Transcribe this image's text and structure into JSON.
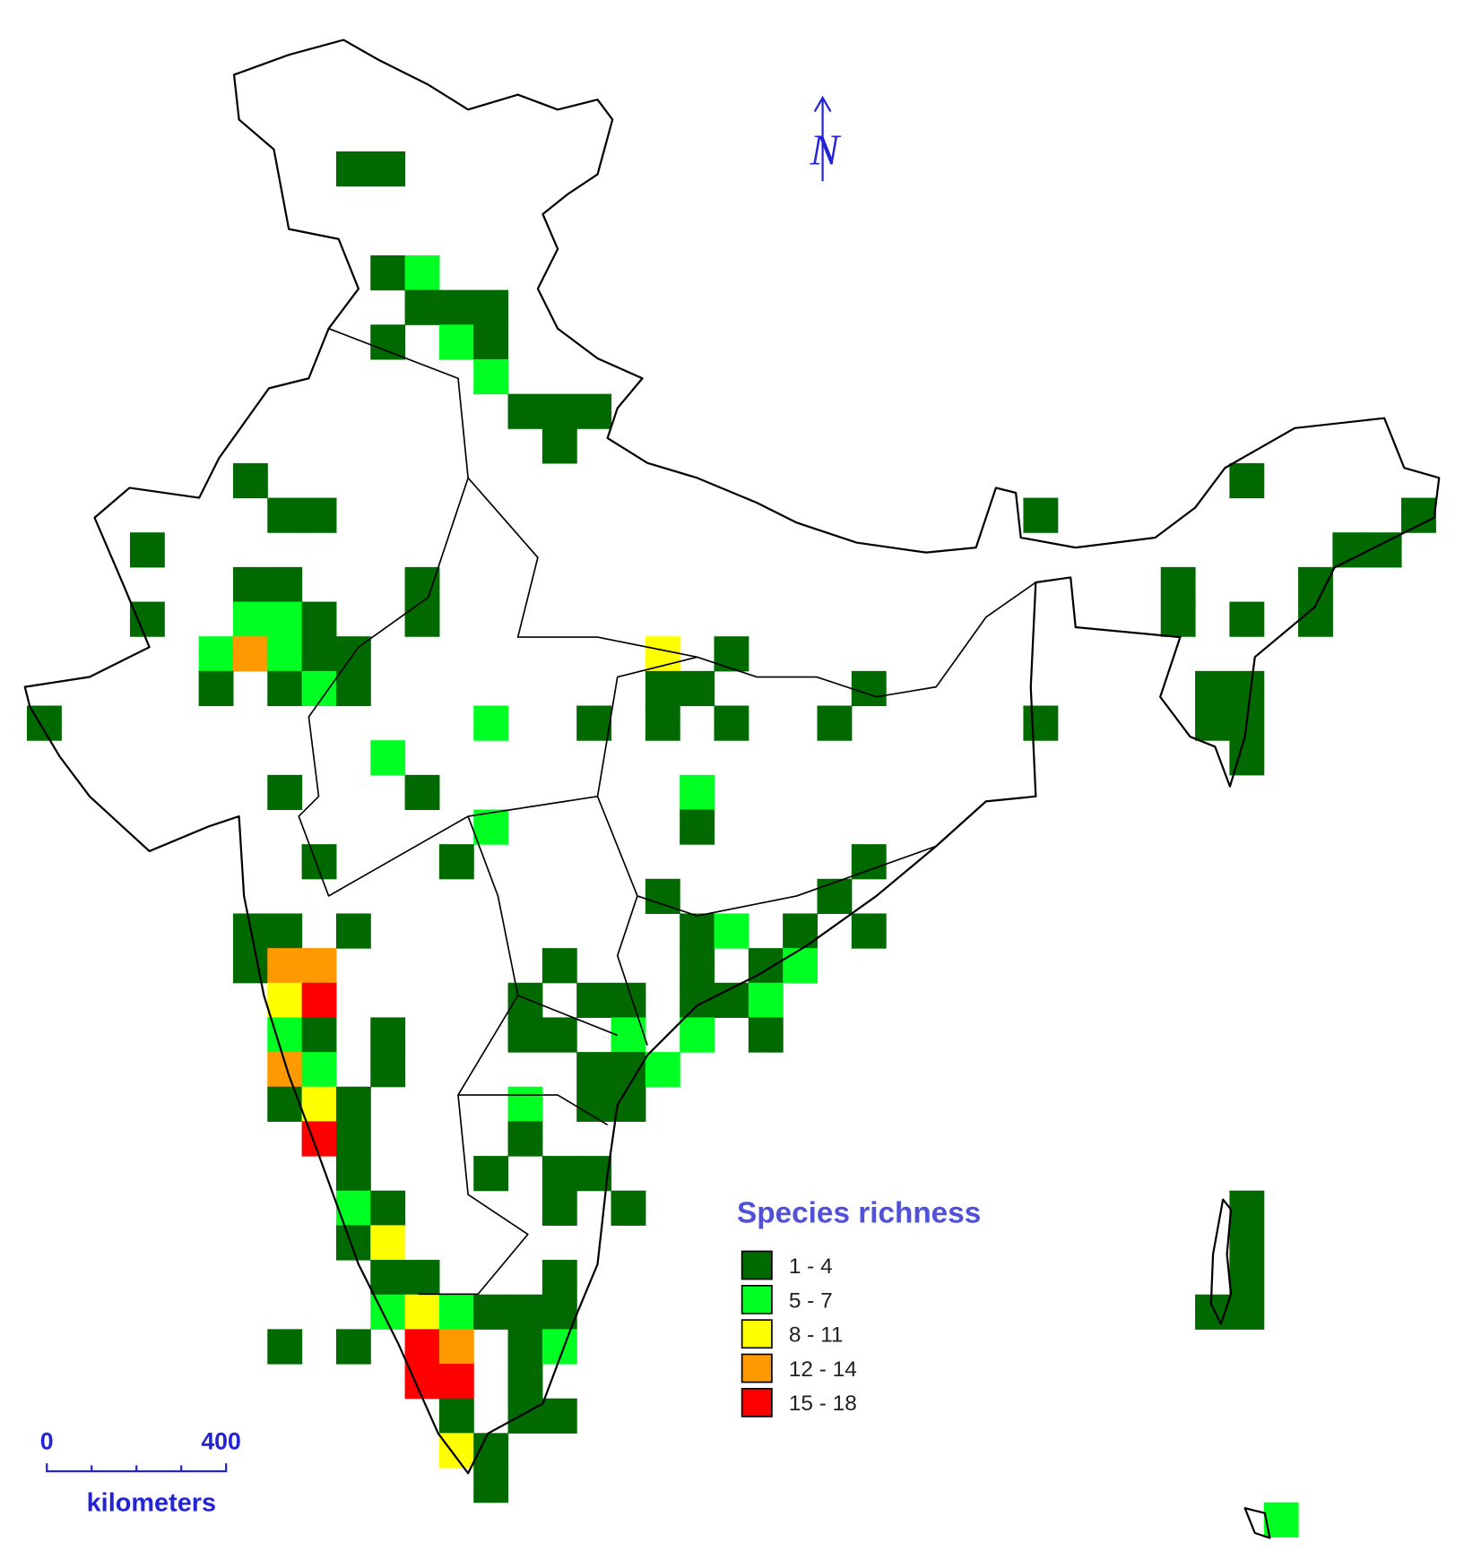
{
  "legend": {
    "title": "Species richness",
    "items": [
      {
        "label": "1 - 4",
        "color": "#006a00"
      },
      {
        "label": "5 - 7",
        "color": "#00ff22"
      },
      {
        "label": "8 - 11",
        "color": "#ffff00"
      },
      {
        "label": "12 - 14",
        "color": "#ff9900"
      },
      {
        "label": "15 - 18",
        "color": "#ff0000"
      }
    ]
  },
  "north_arrow": {
    "label": "N"
  },
  "scale_bar": {
    "start": "0",
    "end": "400",
    "unit": "kilometers"
  },
  "cells": [
    [
      0,
      9,
      0
    ],
    [
      0,
      10,
      0
    ],
    [
      3,
      10,
      0
    ],
    [
      3,
      11,
      1
    ],
    [
      4,
      11,
      0
    ],
    [
      4,
      12,
      0
    ],
    [
      4,
      13,
      0
    ],
    [
      5,
      10,
      0
    ],
    [
      5,
      12,
      1
    ],
    [
      5,
      13,
      0
    ],
    [
      6,
      13,
      1
    ],
    [
      7,
      14,
      0
    ],
    [
      7,
      15,
      0
    ],
    [
      7,
      16,
      0
    ],
    [
      8,
      15,
      0
    ],
    [
      9,
      6,
      0
    ],
    [
      9,
      35,
      0
    ],
    [
      10,
      7,
      0
    ],
    [
      10,
      8,
      0
    ],
    [
      10,
      29,
      0
    ],
    [
      10,
      40,
      0
    ],
    [
      11,
      3,
      0
    ],
    [
      11,
      38,
      0
    ],
    [
      11,
      39,
      0
    ],
    [
      12,
      6,
      0
    ],
    [
      12,
      7,
      0
    ],
    [
      12,
      11,
      0
    ],
    [
      12,
      33,
      0
    ],
    [
      12,
      37,
      0
    ],
    [
      13,
      3,
      0
    ],
    [
      13,
      6,
      1
    ],
    [
      13,
      7,
      1
    ],
    [
      13,
      8,
      0
    ],
    [
      13,
      11,
      0
    ],
    [
      13,
      33,
      0
    ],
    [
      13,
      35,
      0
    ],
    [
      13,
      37,
      0
    ],
    [
      14,
      5,
      1
    ],
    [
      14,
      6,
      3
    ],
    [
      14,
      7,
      1
    ],
    [
      14,
      8,
      0
    ],
    [
      14,
      9,
      0
    ],
    [
      14,
      18,
      2
    ],
    [
      14,
      20,
      0
    ],
    [
      15,
      5,
      0
    ],
    [
      15,
      7,
      0
    ],
    [
      15,
      8,
      1
    ],
    [
      15,
      9,
      0
    ],
    [
      15,
      18,
      0
    ],
    [
      15,
      19,
      0
    ],
    [
      15,
      24,
      0
    ],
    [
      15,
      34,
      0
    ],
    [
      15,
      35,
      0
    ],
    [
      16,
      0,
      0
    ],
    [
      16,
      13,
      1
    ],
    [
      16,
      16,
      0
    ],
    [
      16,
      18,
      0
    ],
    [
      16,
      20,
      0
    ],
    [
      16,
      23,
      0
    ],
    [
      16,
      29,
      0
    ],
    [
      16,
      34,
      0
    ],
    [
      16,
      35,
      0
    ],
    [
      17,
      10,
      1
    ],
    [
      17,
      35,
      0
    ],
    [
      18,
      7,
      0
    ],
    [
      18,
      11,
      0
    ],
    [
      18,
      19,
      1
    ],
    [
      19,
      13,
      1
    ],
    [
      19,
      19,
      0
    ],
    [
      20,
      8,
      0
    ],
    [
      20,
      12,
      0
    ],
    [
      20,
      24,
      0
    ],
    [
      21,
      18,
      0
    ],
    [
      21,
      23,
      0
    ],
    [
      22,
      6,
      0
    ],
    [
      22,
      7,
      0
    ],
    [
      22,
      9,
      0
    ],
    [
      22,
      19,
      0
    ],
    [
      22,
      20,
      1
    ],
    [
      22,
      22,
      0
    ],
    [
      22,
      24,
      0
    ],
    [
      23,
      6,
      0
    ],
    [
      23,
      7,
      3
    ],
    [
      23,
      8,
      3
    ],
    [
      23,
      15,
      0
    ],
    [
      23,
      19,
      0
    ],
    [
      23,
      21,
      0
    ],
    [
      23,
      22,
      1
    ],
    [
      24,
      7,
      2
    ],
    [
      24,
      8,
      4
    ],
    [
      24,
      14,
      0
    ],
    [
      24,
      16,
      0
    ],
    [
      24,
      17,
      0
    ],
    [
      24,
      19,
      0
    ],
    [
      24,
      20,
      0
    ],
    [
      24,
      21,
      1
    ],
    [
      25,
      7,
      1
    ],
    [
      25,
      8,
      0
    ],
    [
      25,
      10,
      0
    ],
    [
      25,
      14,
      0
    ],
    [
      25,
      15,
      0
    ],
    [
      25,
      17,
      1
    ],
    [
      25,
      19,
      1
    ],
    [
      25,
      21,
      0
    ],
    [
      26,
      7,
      3
    ],
    [
      26,
      8,
      1
    ],
    [
      26,
      10,
      0
    ],
    [
      26,
      16,
      0
    ],
    [
      26,
      17,
      0
    ],
    [
      26,
      18,
      1
    ],
    [
      27,
      7,
      0
    ],
    [
      27,
      8,
      2
    ],
    [
      27,
      9,
      0
    ],
    [
      27,
      14,
      1
    ],
    [
      27,
      16,
      0
    ],
    [
      27,
      17,
      0
    ],
    [
      28,
      8,
      4
    ],
    [
      28,
      9,
      0
    ],
    [
      28,
      14,
      0
    ],
    [
      29,
      9,
      0
    ],
    [
      29,
      13,
      0
    ],
    [
      29,
      15,
      0
    ],
    [
      29,
      16,
      0
    ],
    [
      30,
      9,
      1
    ],
    [
      30,
      10,
      0
    ],
    [
      30,
      15,
      0
    ],
    [
      30,
      17,
      0
    ],
    [
      30,
      35,
      0
    ],
    [
      31,
      9,
      0
    ],
    [
      31,
      10,
      2
    ],
    [
      31,
      35,
      0
    ],
    [
      32,
      10,
      0
    ],
    [
      32,
      11,
      0
    ],
    [
      32,
      15,
      0
    ],
    [
      32,
      35,
      0
    ],
    [
      33,
      10,
      1
    ],
    [
      33,
      11,
      2
    ],
    [
      33,
      12,
      1
    ],
    [
      33,
      13,
      0
    ],
    [
      33,
      14,
      0
    ],
    [
      33,
      15,
      0
    ],
    [
      33,
      34,
      0
    ],
    [
      33,
      35,
      0
    ],
    [
      34,
      7,
      0
    ],
    [
      34,
      9,
      0
    ],
    [
      34,
      11,
      4
    ],
    [
      34,
      12,
      3
    ],
    [
      34,
      14,
      0
    ],
    [
      34,
      15,
      1
    ],
    [
      35,
      11,
      4
    ],
    [
      35,
      12,
      4
    ],
    [
      35,
      14,
      0
    ],
    [
      36,
      12,
      0
    ],
    [
      36,
      14,
      0
    ],
    [
      36,
      15,
      0
    ],
    [
      37,
      12,
      2
    ],
    [
      37,
      13,
      0
    ],
    [
      38,
      13,
      0
    ],
    [
      39,
      36,
      1
    ]
  ]
}
